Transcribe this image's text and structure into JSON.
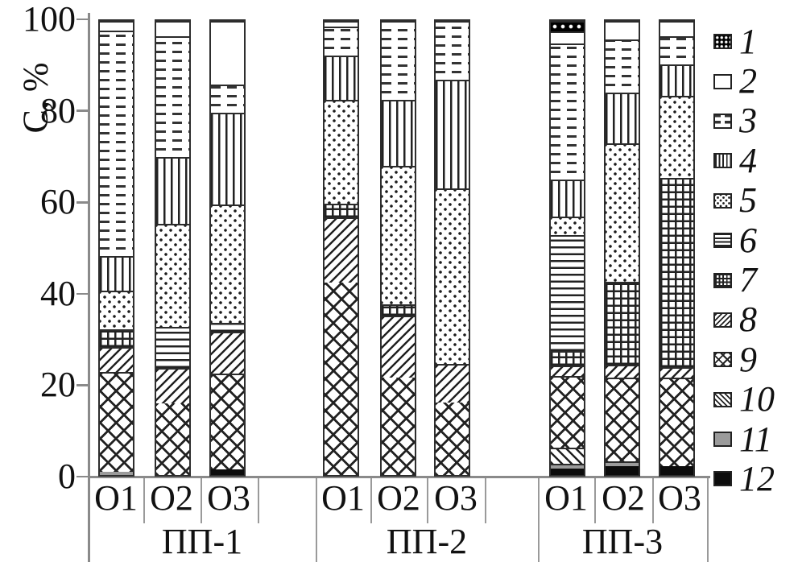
{
  "chart_data": {
    "type": "bar",
    "subtype": "stacked-100-percent",
    "title": "",
    "ylabel": "С, %",
    "xlabel": "",
    "ylim": [
      0,
      100
    ],
    "y_ticks": [
      0,
      20,
      40,
      60,
      80,
      100
    ],
    "grid": false,
    "legend_position": "right-outside",
    "series": [
      {
        "id": 1,
        "label": "1",
        "pattern": "black-with-white-dots"
      },
      {
        "id": 2,
        "label": "2",
        "pattern": "plain-white"
      },
      {
        "id": 3,
        "label": "3",
        "pattern": "horizontal-dashes"
      },
      {
        "id": 4,
        "label": "4",
        "pattern": "vertical-lines"
      },
      {
        "id": 5,
        "label": "5",
        "pattern": "sparse-dots"
      },
      {
        "id": 6,
        "label": "6",
        "pattern": "horizontal-lines"
      },
      {
        "id": 7,
        "label": "7",
        "pattern": "square-grid"
      },
      {
        "id": 8,
        "label": "8",
        "pattern": "diagonal-lines-up"
      },
      {
        "id": 9,
        "label": "9",
        "pattern": "diamond-crosshatch"
      },
      {
        "id": 10,
        "label": "10",
        "pattern": "diagonal-lines-down"
      },
      {
        "id": 11,
        "label": "11",
        "pattern": "solid-gray"
      },
      {
        "id": 12,
        "label": "12",
        "pattern": "solid-black"
      }
    ],
    "groups": [
      {
        "label": "ПП-1",
        "bars": [
          {
            "label": "О1",
            "segments": [
              {
                "series": 11,
                "value": 0.7
              },
              {
                "series": 9,
                "value": 22.0
              },
              {
                "series": 8,
                "value": 5.5
              },
              {
                "series": 7,
                "value": 3.9
              },
              {
                "series": 5,
                "value": 8.5
              },
              {
                "series": 4,
                "value": 7.6
              },
              {
                "series": 3,
                "value": 49.7
              },
              {
                "series": 2,
                "value": 2.1
              }
            ]
          },
          {
            "label": "О2",
            "segments": [
              {
                "series": 9,
                "value": 15.7
              },
              {
                "series": 8,
                "value": 7.9
              },
              {
                "series": 6,
                "value": 9.0
              },
              {
                "series": 5,
                "value": 22.7
              },
              {
                "series": 4,
                "value": 14.8
              },
              {
                "series": 3,
                "value": 26.5
              },
              {
                "series": 2,
                "value": 3.4
              }
            ]
          },
          {
            "label": "О3",
            "segments": [
              {
                "series": 12,
                "value": 1.2
              },
              {
                "series": 9,
                "value": 21.2
              },
              {
                "series": 8,
                "value": 9.2
              },
              {
                "series": 6,
                "value": 1.9
              },
              {
                "series": 5,
                "value": 26.0
              },
              {
                "series": 4,
                "value": 20.3
              },
              {
                "series": 3,
                "value": 6.2
              },
              {
                "series": 2,
                "value": 14.0
              }
            ]
          }
        ]
      },
      {
        "label": "ПП-2",
        "bars": [
          {
            "label": "О1",
            "segments": [
              {
                "series": 9,
                "value": 42.3
              },
              {
                "series": 8,
                "value": 14.4
              },
              {
                "series": 7,
                "value": 3.0
              },
              {
                "series": 5,
                "value": 22.9
              },
              {
                "series": 4,
                "value": 9.7
              },
              {
                "series": 3,
                "value": 6.5
              },
              {
                "series": 2,
                "value": 1.2
              }
            ]
          },
          {
            "label": "О2",
            "segments": [
              {
                "series": 9,
                "value": 21.5
              },
              {
                "series": 8,
                "value": 13.6
              },
              {
                "series": 7,
                "value": 2.5
              },
              {
                "series": 5,
                "value": 30.5
              },
              {
                "series": 4,
                "value": 14.5
              },
              {
                "series": 3,
                "value": 17.4
              }
            ]
          },
          {
            "label": "О3",
            "segments": [
              {
                "series": 9,
                "value": 16.0
              },
              {
                "series": 8,
                "value": 8.5
              },
              {
                "series": 5,
                "value": 38.7
              },
              {
                "series": 4,
                "value": 23.8
              },
              {
                "series": 3,
                "value": 13.0
              }
            ]
          }
        ]
      },
      {
        "label": "ПП-3",
        "bars": [
          {
            "label": "О1",
            "segments": [
              {
                "series": 12,
                "value": 1.4
              },
              {
                "series": 11,
                "value": 1.1
              },
              {
                "series": 10,
                "value": 3.5
              },
              {
                "series": 9,
                "value": 15.8
              },
              {
                "series": 8,
                "value": 2.3
              },
              {
                "series": 7,
                "value": 3.2
              },
              {
                "series": 6,
                "value": 25.5
              },
              {
                "series": 5,
                "value": 4.2
              },
              {
                "series": 4,
                "value": 8.1
              },
              {
                "series": 3,
                "value": 30.0
              },
              {
                "series": 2,
                "value": 2.6
              },
              {
                "series": 1,
                "value": 2.3
              }
            ]
          },
          {
            "label": "О2",
            "segments": [
              {
                "series": 12,
                "value": 1.9
              },
              {
                "series": 11,
                "value": 1.1
              },
              {
                "series": 9,
                "value": 18.5
              },
              {
                "series": 8,
                "value": 2.8
              },
              {
                "series": 7,
                "value": 18.3
              },
              {
                "series": 5,
                "value": 30.4
              },
              {
                "series": 4,
                "value": 11.3
              },
              {
                "series": 3,
                "value": 11.6
              },
              {
                "series": 2,
                "value": 4.1
              }
            ]
          },
          {
            "label": "О3",
            "segments": [
              {
                "series": 12,
                "value": 2.0
              },
              {
                "series": 9,
                "value": 19.4
              },
              {
                "series": 8,
                "value": 2.3
              },
              {
                "series": 7,
                "value": 41.7
              },
              {
                "series": 5,
                "value": 18.1
              },
              {
                "series": 4,
                "value": 6.9
              },
              {
                "series": 3,
                "value": 6.3
              },
              {
                "series": 2,
                "value": 3.3
              }
            ]
          }
        ]
      }
    ],
    "colors": {
      "ink": "#222222",
      "gray_series": "#9b9b9b",
      "black_series": "#0c0c0c",
      "axis": "#8a8a8a",
      "background": "#ffffff"
    }
  }
}
